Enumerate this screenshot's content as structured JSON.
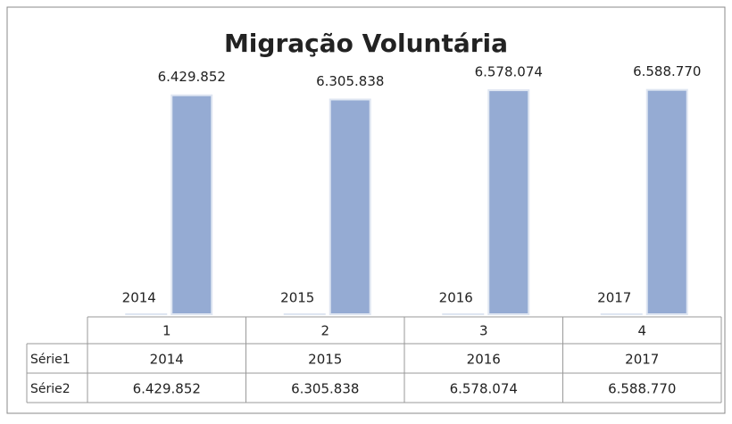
{
  "chart_data": {
    "type": "bar",
    "title": "Migração Voluntária",
    "categories": [
      "1",
      "2",
      "3",
      "4"
    ],
    "series": [
      {
        "name": "Série1",
        "color": "#95abd3",
        "values": [
          2014,
          2015,
          2016,
          2017
        ]
      },
      {
        "name": "Série2",
        "color": "#95abd3",
        "values": [
          6429852,
          6305838,
          6578074,
          6588770
        ],
        "value_labels": [
          "6.429.852",
          "6.305.838",
          "6.578.074",
          "6.588.770"
        ]
      }
    ],
    "ylim": [
      0,
      7000000
    ]
  }
}
